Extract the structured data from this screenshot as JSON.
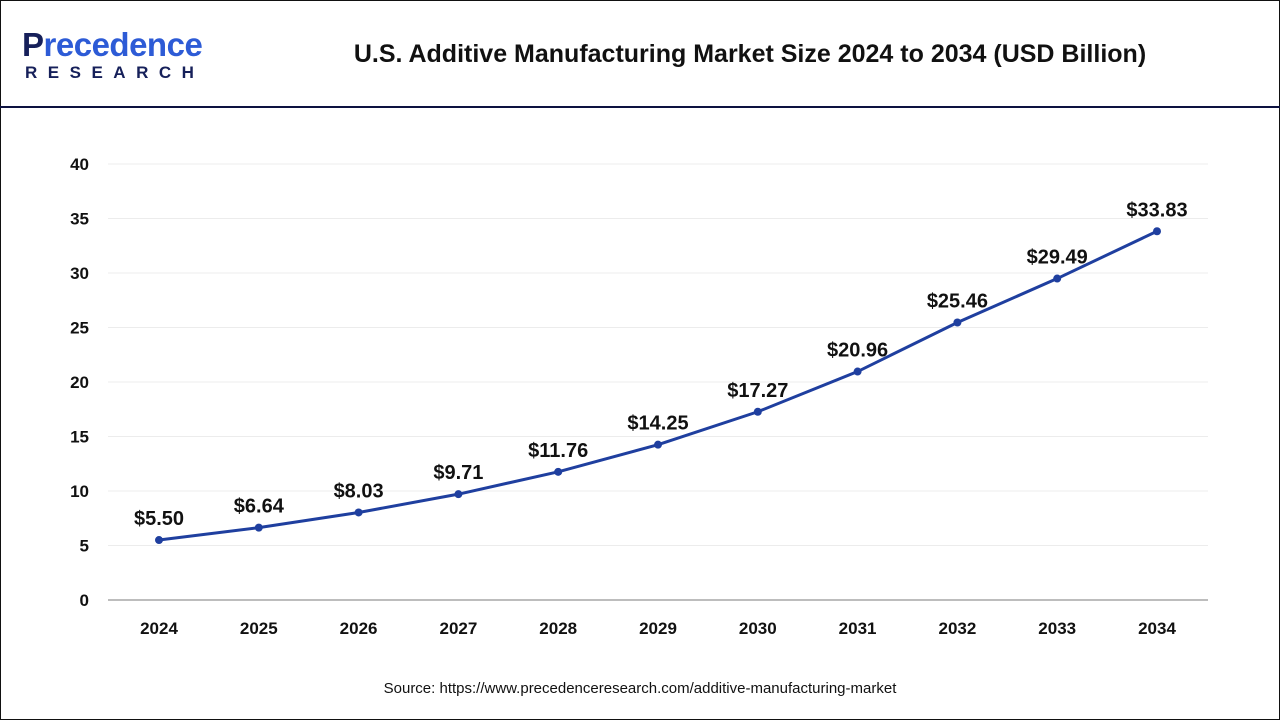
{
  "header": {
    "logo_text_top": "Precedence",
    "logo_text_bottom": "RESEARCH",
    "title": "U.S. Additive Manufacturing Market Size 2024 to 2034 (USD Billion)"
  },
  "source": "Source: https://www.precedenceresearch.com/additive-manufacturing-market",
  "chart_data": {
    "type": "line",
    "title": "U.S. Additive Manufacturing Market Size 2024 to 2034 (USD Billion)",
    "categories": [
      "2024",
      "2025",
      "2026",
      "2027",
      "2028",
      "2029",
      "2030",
      "2031",
      "2032",
      "2033",
      "2034"
    ],
    "values": [
      5.5,
      6.64,
      8.03,
      9.71,
      11.76,
      14.25,
      17.27,
      20.96,
      25.46,
      29.49,
      33.83
    ],
    "data_labels": [
      "$5.50",
      "$6.64",
      "$8.03",
      "$9.71",
      "$11.76",
      "$14.25",
      "$17.27",
      "$20.96",
      "$25.46",
      "$29.49",
      "$33.83"
    ],
    "y_ticks": [
      "0",
      "5",
      "10",
      "15",
      "20",
      "25",
      "30",
      "35",
      "40"
    ],
    "ylim": [
      0,
      40
    ],
    "grid": true,
    "line_color": "#1f3f9f",
    "xlabel": "",
    "ylabel": ""
  }
}
